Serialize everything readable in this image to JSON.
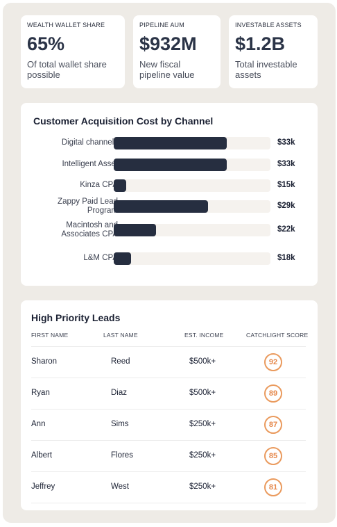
{
  "stats": [
    {
      "label": "WEALTH WALLET SHARE",
      "value": "65%",
      "desc_line1": "Of total wallet share",
      "desc_line2": "possible"
    },
    {
      "label": "PIPELINE AUM",
      "value": "$932M",
      "desc_line1": "New fiscal",
      "desc_line2": "pipeline value"
    },
    {
      "label": "INVESTABLE ASSETS",
      "value": "$1.2B",
      "desc_line1": "Total investable",
      "desc_line2": "assets"
    }
  ],
  "chart_data": {
    "type": "bar",
    "title": "Customer Acquisition Cost by Channel",
    "categories": [
      "Digital channels",
      "Intelligent Asset",
      "Kinza CPA",
      "Zappy Paid Lead Program",
      "Macintosh and Associates CPA",
      "L&M CPA"
    ],
    "values": [
      33,
      33,
      15,
      29,
      22,
      18
    ],
    "value_labels": [
      "$33k",
      "$33k",
      "$15k",
      "$29k",
      "$22k",
      "$18k"
    ],
    "fill_fractions": [
      0.72,
      0.72,
      0.08,
      0.6,
      0.27,
      0.11
    ],
    "orientation": "horizontal",
    "bar_color": "#262e40",
    "track_color": "#f5f2ee"
  },
  "leads": {
    "title": "High Priority Leads",
    "columns": [
      "FIRST NAME",
      "LAST NAME",
      "EST. INCOME",
      "CATCHLIGHT SCORE"
    ],
    "rows": [
      {
        "first": "Sharon",
        "last": "Reed",
        "income": "$500k+",
        "score": "92"
      },
      {
        "first": "Ryan",
        "last": "Diaz",
        "income": "$500k+",
        "score": "89"
      },
      {
        "first": "Ann",
        "last": "Sims",
        "income": "$250k+",
        "score": "87"
      },
      {
        "first": "Albert",
        "last": "Flores",
        "income": "$250k+",
        "score": "85"
      },
      {
        "first": "Jeffrey",
        "last": "West",
        "income": "$250k+",
        "score": "81"
      }
    ],
    "score_color": "#e5874a"
  }
}
